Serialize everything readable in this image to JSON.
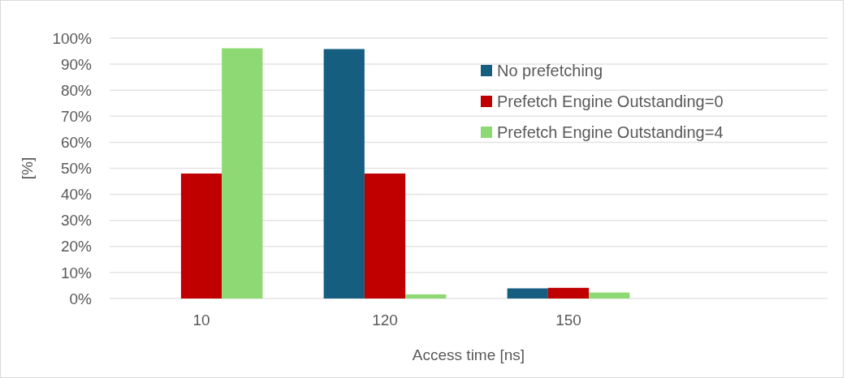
{
  "chart_data": {
    "type": "bar",
    "xlabel": "Access time [ns]",
    "ylabel": "[%]",
    "categories": [
      "10",
      "120",
      "150",
      null
    ],
    "series": [
      {
        "name": "No prefetching",
        "color": "#165e80",
        "values": [
          0,
          95.8,
          3.9,
          null
        ]
      },
      {
        "name": "Prefetch Engine Outstanding=0",
        "color": "#c00000",
        "values": [
          48,
          48,
          4.1,
          null
        ]
      },
      {
        "name": "Prefetch Engine Outstanding=4",
        "color": "#8fd974",
        "values": [
          96.1,
          1.6,
          2.3,
          null
        ]
      }
    ],
    "ylim": [
      0,
      100
    ],
    "yticks": [
      {
        "value": 0,
        "label": "0%"
      },
      {
        "value": 10,
        "label": "10%"
      },
      {
        "value": 20,
        "label": "20%"
      },
      {
        "value": 30,
        "label": "30%"
      },
      {
        "value": 40,
        "label": "40%"
      },
      {
        "value": 50,
        "label": "50%"
      },
      {
        "value": 60,
        "label": "60%"
      },
      {
        "value": 70,
        "label": "70%"
      },
      {
        "value": 80,
        "label": "80%"
      },
      {
        "value": 90,
        "label": "90%"
      },
      {
        "value": 100,
        "label": "100%"
      }
    ],
    "grid": "y",
    "legend": "top right"
  }
}
